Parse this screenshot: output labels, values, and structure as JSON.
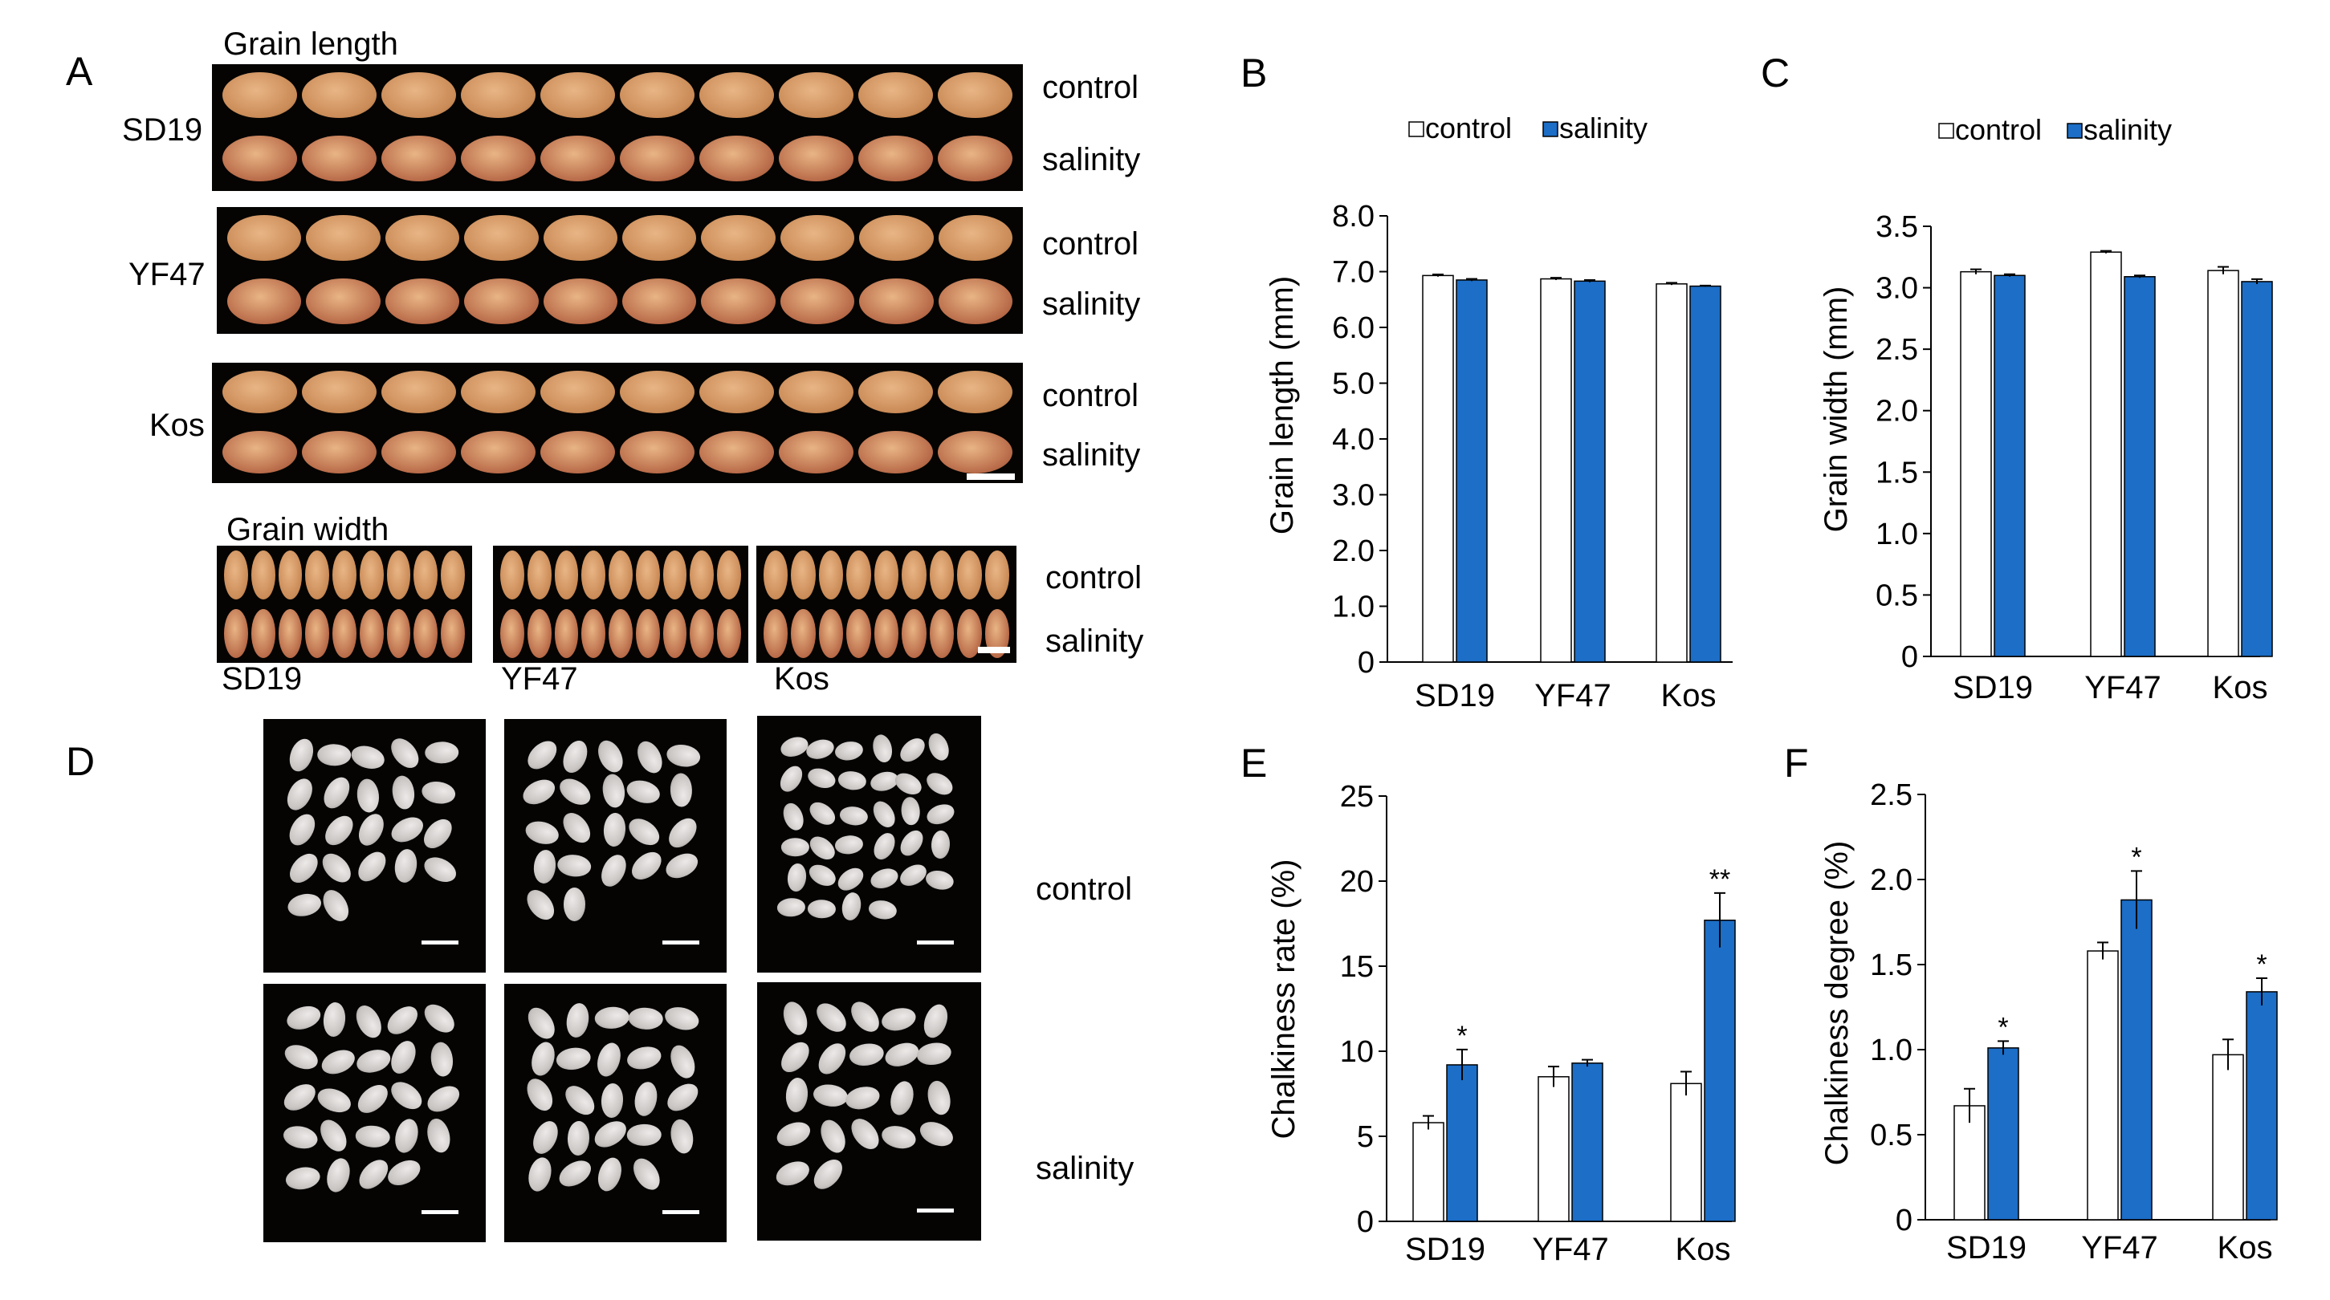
{
  "panels": {
    "A": "A",
    "B": "B",
    "C": "C",
    "D": "D",
    "E": "E",
    "F": "F"
  },
  "panel_a": {
    "title_length": "Grain length",
    "title_width": "Grain width",
    "varieties": [
      "SD19",
      "YF47",
      "Kos"
    ],
    "treatments": [
      "control",
      "salinity"
    ]
  },
  "panel_d": {
    "treatments": [
      "control",
      "salinity"
    ]
  },
  "colors": {
    "control_fill": "#ffffff",
    "salinity_fill": "#1c6ec7",
    "grain_brown": "#c98a56",
    "grain_red": "#b86a48",
    "milled_grain": "#c8c4c2"
  },
  "chart_data": [
    {
      "id": "B",
      "type": "bar",
      "categories": [
        "SD19",
        "YF47",
        "Kos"
      ],
      "series": [
        {
          "name": "control",
          "values": [
            6.93,
            6.87,
            6.78
          ],
          "errors": [
            0.02,
            0.02,
            0.02
          ]
        },
        {
          "name": "salinity",
          "values": [
            6.85,
            6.83,
            6.74
          ],
          "errors": [
            0.02,
            0.02,
            0.01
          ]
        }
      ],
      "ylabel": "Grain length (mm)",
      "ylim": [
        0,
        8.0
      ],
      "yticks": [
        "0",
        "1.0",
        "2.0",
        "3.0",
        "4.0",
        "5.0",
        "6.0",
        "7.0",
        "8.0"
      ],
      "legend": "top"
    },
    {
      "id": "C",
      "type": "bar",
      "categories": [
        "SD19",
        "YF47",
        "Kos"
      ],
      "series": [
        {
          "name": "control",
          "values": [
            3.13,
            3.29,
            3.14
          ],
          "errors": [
            0.02,
            0.01,
            0.03
          ]
        },
        {
          "name": "salinity",
          "values": [
            3.1,
            3.09,
            3.05
          ],
          "errors": [
            0.01,
            0.01,
            0.02
          ]
        }
      ],
      "ylabel": "Grain width (mm)",
      "ylim": [
        0,
        3.5
      ],
      "yticks": [
        "0",
        "0.5",
        "1.0",
        "1.5",
        "2.0",
        "2.5",
        "3.0",
        "3.5"
      ],
      "legend": "top"
    },
    {
      "id": "E",
      "type": "bar",
      "categories": [
        "SD19",
        "YF47",
        "Kos"
      ],
      "series": [
        {
          "name": "control",
          "values": [
            5.8,
            8.5,
            8.1
          ],
          "errors": [
            0.4,
            0.6,
            0.7
          ],
          "sig": [
            "",
            "",
            ""
          ]
        },
        {
          "name": "salinity",
          "values": [
            9.2,
            9.3,
            17.7
          ],
          "errors": [
            0.9,
            0.2,
            1.6
          ],
          "sig": [
            "*",
            "",
            "**"
          ]
        }
      ],
      "ylabel": "Chalkiness rate (%)",
      "ylim": [
        0,
        25
      ],
      "yticks": [
        "0",
        "5",
        "10",
        "15",
        "20",
        "25"
      ]
    },
    {
      "id": "F",
      "type": "bar",
      "categories": [
        "SD19",
        "YF47",
        "Kos"
      ],
      "series": [
        {
          "name": "control",
          "values": [
            0.67,
            1.58,
            0.97
          ],
          "errors": [
            0.1,
            0.05,
            0.09
          ],
          "sig": [
            "",
            "",
            ""
          ]
        },
        {
          "name": "salinity",
          "values": [
            1.01,
            1.88,
            1.34
          ],
          "errors": [
            0.04,
            0.17,
            0.08
          ],
          "sig": [
            "*",
            "*",
            "*"
          ]
        }
      ],
      "ylabel": "Chalkiness degree (%)",
      "ylim": [
        0,
        2.5
      ],
      "yticks": [
        "0",
        "0.5",
        "1.0",
        "1.5",
        "2.0",
        "2.5"
      ]
    }
  ]
}
